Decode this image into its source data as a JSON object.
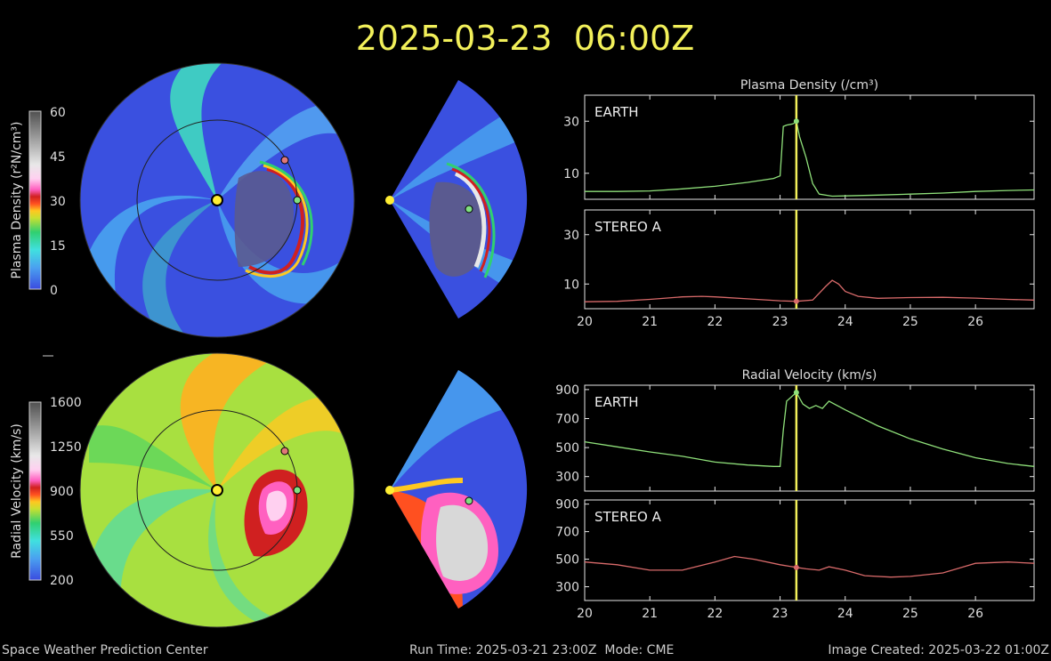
{
  "header": {
    "timestamp": "2025-03-23  06:00Z"
  },
  "footer": {
    "org": "Space Weather Prediction Center",
    "run": "Run Time: 2025-03-21 23:00Z  Mode: CME",
    "created": "Image Created: 2025-03-22 01:00Z"
  },
  "colorbars": {
    "density": {
      "label": "Plasma Density (r²N/cm³)",
      "ticks": [
        "60",
        "45",
        "30",
        "15",
        "0"
      ]
    },
    "velocity": {
      "label": "Radial Velocity (km/s)",
      "ticks": [
        "1600",
        "1250",
        "900",
        "550",
        "200"
      ]
    }
  },
  "colors": {
    "earth_trace": "#8fe07a",
    "stereo_trace": "#d86a6a",
    "marker_line": "#f2f05a",
    "title_text": "#f2f05a",
    "sun": "#ffee33"
  },
  "chart_data": [
    {
      "type": "line",
      "title": "Plasma Density (/cm³)",
      "ylabel": "",
      "xlabel": "",
      "xlim": [
        20,
        26.9
      ],
      "ylim": [
        0,
        40
      ],
      "yticks": [
        "30",
        "10"
      ],
      "ytick_values": [
        30,
        10
      ],
      "xticks": [
        "20",
        "21",
        "22",
        "23",
        "24",
        "25",
        "26"
      ],
      "current_time": 23.25,
      "panels": [
        {
          "name": "EARTH",
          "x": [
            20,
            20.5,
            21,
            21.5,
            22,
            22.5,
            22.9,
            23.0,
            23.05,
            23.1,
            23.2,
            23.25,
            23.3,
            23.4,
            23.5,
            23.6,
            23.8,
            24,
            24.5,
            25,
            25.5,
            26,
            26.5,
            26.9
          ],
          "y": [
            3,
            3,
            3.2,
            4,
            5,
            6.5,
            8,
            9,
            28,
            28.5,
            29,
            30,
            24,
            16,
            6,
            2,
            1.2,
            1.3,
            1.6,
            2,
            2.4,
            3,
            3.4,
            3.6
          ]
        },
        {
          "name": "STEREO A",
          "x": [
            20,
            20.5,
            21,
            21.5,
            21.8,
            22,
            22.5,
            23,
            23.25,
            23.5,
            23.7,
            23.8,
            23.9,
            24,
            24.2,
            24.5,
            25,
            25.5,
            26,
            26.5,
            26.9
          ],
          "y": [
            2.8,
            3,
            3.8,
            4.8,
            5,
            4.8,
            4,
            3.2,
            3,
            3.5,
            9,
            11.5,
            10,
            7,
            5,
            4.2,
            4.5,
            4.6,
            4.3,
            3.8,
            3.5
          ]
        }
      ]
    },
    {
      "type": "line",
      "title": "Radial Velocity (km/s)",
      "ylabel": "",
      "xlabel": "",
      "xlim": [
        20,
        26.9
      ],
      "ylim": [
        200,
        900
      ],
      "yticks": [
        "900",
        "700",
        "500",
        "300"
      ],
      "ytick_values": [
        900,
        700,
        500,
        300
      ],
      "xticks": [
        "20",
        "21",
        "22",
        "23",
        "24",
        "25",
        "26"
      ],
      "current_time": 23.25,
      "panels": [
        {
          "name": "EARTH",
          "x": [
            20,
            20.5,
            21,
            21.5,
            22,
            22.5,
            22.9,
            23.0,
            23.05,
            23.1,
            23.2,
            23.25,
            23.35,
            23.45,
            23.55,
            23.65,
            23.75,
            24,
            24.5,
            25,
            25.5,
            26,
            26.5,
            26.9
          ],
          "y": [
            540,
            505,
            470,
            440,
            400,
            380,
            370,
            370,
            620,
            820,
            860,
            880,
            800,
            770,
            790,
            770,
            820,
            760,
            650,
            560,
            490,
            430,
            390,
            370
          ]
        },
        {
          "name": "STEREO A",
          "x": [
            20,
            20.5,
            21,
            21.5,
            22,
            22.3,
            22.6,
            23,
            23.25,
            23.4,
            23.6,
            23.75,
            24,
            24.3,
            24.7,
            25,
            25.5,
            26,
            26.5,
            26.9
          ],
          "y": [
            480,
            460,
            420,
            420,
            480,
            520,
            500,
            460,
            440,
            430,
            420,
            445,
            420,
            380,
            370,
            375,
            400,
            470,
            480,
            470
          ]
        }
      ]
    }
  ]
}
